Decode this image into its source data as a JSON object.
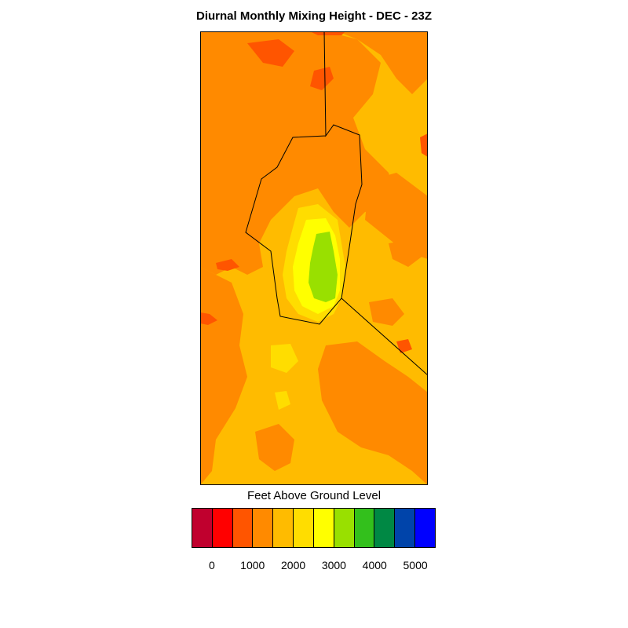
{
  "title": "Diurnal Monthly Mixing Height - DEC - 23Z",
  "legend": {
    "title": "Feet Above Ground Level",
    "colors": [
      "#c0002e",
      "#ff0000",
      "#ff5500",
      "#ff8a00",
      "#ffbb00",
      "#ffdd00",
      "#ffff00",
      "#99e000",
      "#33c01c",
      "#008844",
      "#0044aa",
      "#0000ff"
    ],
    "tick_labels": [
      "0",
      "1000",
      "2000",
      "3000",
      "4000",
      "5000"
    ]
  },
  "map": {
    "variable": "Mixing Height",
    "units": "Feet Above Ground Level",
    "palette_levels": {
      "darkorange_red": "#ff5500",
      "orange": "#ff8a00",
      "light_orange": "#ffbb00",
      "yellow_orange": "#ffdd00",
      "yellow": "#ffff00",
      "green": "#99e000"
    }
  }
}
